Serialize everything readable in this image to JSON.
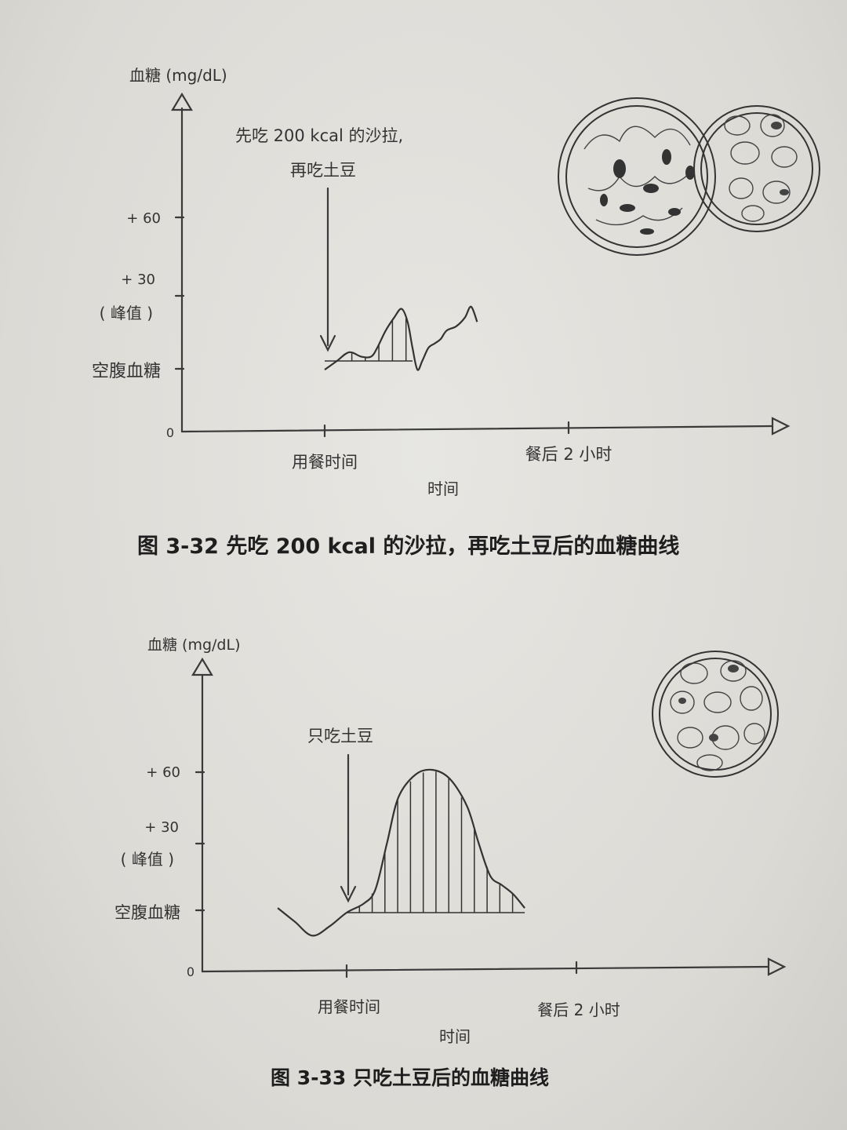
{
  "chart_data": [
    {
      "type": "area",
      "id": "fig-3-32",
      "caption": "图 3-32 先吃 200 kcal 的沙拉，再吃土豆后的血糖曲线",
      "ylabel": "血糖 (mg/dL)",
      "xlabel": "时间",
      "y_ticks": [
        "0",
        "空腹血糖",
        "( 峰值 )",
        "+ 30",
        "+ 60"
      ],
      "x_ticks": [
        "用餐时间",
        "餐后 2 小时"
      ],
      "annotation": [
        "先吃 200 kcal 的沙拉,",
        "再吃土豆"
      ],
      "illustration": "salad-and-potato-plates",
      "series": [
        {
          "x": [
            0,
            0.1,
            0.2,
            0.3,
            0.38,
            0.43,
            0.5,
            0.57,
            0.63,
            0.68,
            0.72,
            0.76,
            0.8,
            0.85,
            0.9,
            0.95,
            1.0,
            1.08,
            1.15,
            1.2,
            1.25
          ],
          "y": [
            -4,
            0,
            4,
            2,
            2,
            6,
            14,
            20,
            24,
            18,
            6,
            -4,
            0,
            6,
            8,
            10,
            14,
            16,
            20,
            25,
            18
          ]
        }
      ],
      "shaded_range": [
        0,
        0.72
      ]
    },
    {
      "type": "area",
      "id": "fig-3-33",
      "caption": "图 3-33 只吃土豆后的血糖曲线",
      "ylabel": "血糖 (mg/dL)",
      "xlabel": "时间",
      "y_ticks": [
        "0",
        "空腹血糖",
        "( 峰值 )",
        "+ 30",
        "+ 60"
      ],
      "x_ticks": [
        "用餐时间",
        "餐后 2 小时"
      ],
      "annotation": [
        "只吃土豆"
      ],
      "illustration": "potato-plate",
      "series": [
        {
          "x": [
            -0.6,
            -0.45,
            -0.3,
            -0.15,
            0,
            0.15,
            0.25,
            0.35,
            0.45,
            0.6,
            0.75,
            0.9,
            1.05,
            1.15,
            1.25,
            1.35,
            1.45,
            1.55
          ],
          "y": [
            2,
            -4,
            -10,
            -6,
            0,
            4,
            10,
            30,
            50,
            60,
            62,
            58,
            46,
            30,
            16,
            12,
            8,
            2
          ]
        }
      ],
      "shaded_range": [
        0,
        1.55
      ]
    }
  ]
}
